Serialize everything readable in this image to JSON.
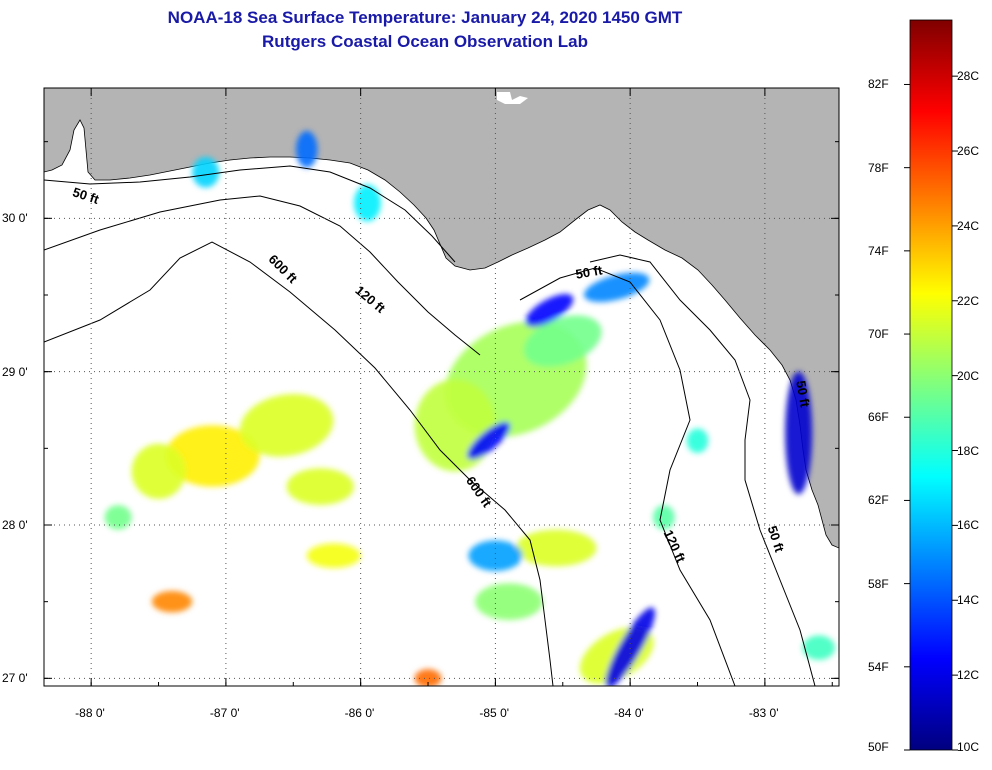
{
  "header": {
    "title": "NOAA-18 Sea Surface Temperature:  January 24, 2020 1450 GMT",
    "subtitle": "Rutgers Coastal Ocean Observation Lab"
  },
  "map": {
    "lon_range": [
      -88.35,
      -82.45
    ],
    "lat_range": [
      26.95,
      30.85
    ],
    "lat_ticks": [
      {
        "value": 30,
        "label": "30 0'"
      },
      {
        "value": 29,
        "label": "29 0'"
      },
      {
        "value": 28,
        "label": "28 0'"
      },
      {
        "value": 27,
        "label": "27 0'"
      }
    ],
    "lon_ticks": [
      {
        "value": -88,
        "label": "-88 0'"
      },
      {
        "value": -87,
        "label": "-87 0'"
      },
      {
        "value": -86,
        "label": "-86 0'"
      },
      {
        "value": -85,
        "label": "-85 0'"
      },
      {
        "value": -84,
        "label": "-84 0'"
      },
      {
        "value": -83,
        "label": "-83 0'"
      }
    ],
    "grid": "dotted",
    "land_color": "#b4b4b4",
    "contour_labels": [
      {
        "text": "50 ft",
        "lon": -88.05,
        "lat": 30.12,
        "rot": 18
      },
      {
        "text": "600 ft",
        "lon": -86.6,
        "lat": 29.65,
        "rot": 45
      },
      {
        "text": "120 ft",
        "lon": -85.95,
        "lat": 29.45,
        "rot": 40
      },
      {
        "text": "50 ft",
        "lon": -84.3,
        "lat": 29.62,
        "rot": -10
      },
      {
        "text": "600 ft",
        "lon": -85.15,
        "lat": 28.2,
        "rot": 55
      },
      {
        "text": "120 ft",
        "lon": -83.7,
        "lat": 27.85,
        "rot": 65
      },
      {
        "text": "50 ft",
        "lon": -82.95,
        "lat": 27.9,
        "rot": 72
      },
      {
        "text": "50 ft",
        "lon": -82.75,
        "lat": 28.85,
        "rot": 80
      }
    ]
  },
  "colorbar": {
    "f_labels": [
      {
        "value": 82,
        "label": "82F"
      },
      {
        "value": 78,
        "label": "78F"
      },
      {
        "value": 74,
        "label": "74F"
      },
      {
        "value": 70,
        "label": "70F"
      },
      {
        "value": 66,
        "label": "66F"
      },
      {
        "value": 62,
        "label": "62F"
      },
      {
        "value": 58,
        "label": "58F"
      },
      {
        "value": 54,
        "label": "54F"
      },
      {
        "value": 50,
        "label": "50F"
      }
    ],
    "c_labels": [
      {
        "value": 28,
        "label": "28C"
      },
      {
        "value": 26,
        "label": "26C"
      },
      {
        "value": 24,
        "label": "24C"
      },
      {
        "value": 22,
        "label": "22C"
      },
      {
        "value": 20,
        "label": "20C"
      },
      {
        "value": 18,
        "label": "18C"
      },
      {
        "value": 16,
        "label": "16C"
      },
      {
        "value": 14,
        "label": "14C"
      },
      {
        "value": 12,
        "label": "12C"
      },
      {
        "value": 10,
        "label": "10C"
      }
    ],
    "range_c": [
      10,
      29.5
    ],
    "colors": [
      "#00007f",
      "#0000ff",
      "#007fff",
      "#00ffff",
      "#7fff7f",
      "#ffff00",
      "#ff7f00",
      "#ff0000",
      "#7f0000"
    ]
  },
  "sst_patches": [
    {
      "lon": -84.85,
      "lat": 28.95,
      "rx": 0.55,
      "ry": 0.35,
      "rot": -25,
      "tempC": 20.5
    },
    {
      "lon": -85.3,
      "lat": 28.65,
      "rx": 0.3,
      "ry": 0.3,
      "rot": 0,
      "tempC": 21.0
    },
    {
      "lon": -84.5,
      "lat": 29.2,
      "rx": 0.3,
      "ry": 0.15,
      "rot": -20,
      "tempC": 19.5
    },
    {
      "lon": -82.75,
      "lat": 28.6,
      "rx": 0.1,
      "ry": 0.4,
      "rot": 0,
      "tempC": 11.5
    },
    {
      "lon": -84.1,
      "lat": 29.55,
      "rx": 0.25,
      "ry": 0.08,
      "rot": -15,
      "tempC": 15.0
    },
    {
      "lon": -84.6,
      "lat": 29.4,
      "rx": 0.2,
      "ry": 0.07,
      "rot": -30,
      "tempC": 12.5
    },
    {
      "lon": -85.05,
      "lat": 28.55,
      "rx": 0.2,
      "ry": 0.06,
      "rot": -40,
      "tempC": 12.5
    },
    {
      "lon": -87.1,
      "lat": 28.45,
      "rx": 0.35,
      "ry": 0.2,
      "rot": 0,
      "tempC": 22.5
    },
    {
      "lon": -86.55,
      "lat": 28.65,
      "rx": 0.35,
      "ry": 0.2,
      "rot": -10,
      "tempC": 21.5
    },
    {
      "lon": -87.5,
      "lat": 28.35,
      "rx": 0.2,
      "ry": 0.18,
      "rot": 0,
      "tempC": 21.5
    },
    {
      "lon": -86.3,
      "lat": 28.25,
      "rx": 0.25,
      "ry": 0.12,
      "rot": 0,
      "tempC": 21.5
    },
    {
      "lon": -87.4,
      "lat": 27.5,
      "rx": 0.15,
      "ry": 0.07,
      "rot": 0,
      "tempC": 24.5
    },
    {
      "lon": -86.2,
      "lat": 27.8,
      "rx": 0.2,
      "ry": 0.08,
      "rot": 0,
      "tempC": 22.0
    },
    {
      "lon": -84.55,
      "lat": 27.85,
      "rx": 0.3,
      "ry": 0.12,
      "rot": 0,
      "tempC": 21.5
    },
    {
      "lon": -85.0,
      "lat": 27.8,
      "rx": 0.2,
      "ry": 0.1,
      "rot": 0,
      "tempC": 15.5
    },
    {
      "lon": -84.9,
      "lat": 27.5,
      "rx": 0.25,
      "ry": 0.12,
      "rot": 0,
      "tempC": 20.0
    },
    {
      "lon": -84.1,
      "lat": 27.15,
      "rx": 0.3,
      "ry": 0.15,
      "rot": -30,
      "tempC": 21.5
    },
    {
      "lon": -84.0,
      "lat": 27.2,
      "rx": 0.08,
      "ry": 0.3,
      "rot": 30,
      "tempC": 12.0
    },
    {
      "lon": -85.5,
      "lat": 27.0,
      "rx": 0.1,
      "ry": 0.06,
      "rot": 0,
      "tempC": 25.0
    },
    {
      "lon": -86.4,
      "lat": 30.45,
      "rx": 0.08,
      "ry": 0.12,
      "rot": 0,
      "tempC": 14.5
    },
    {
      "lon": -85.95,
      "lat": 30.1,
      "rx": 0.1,
      "ry": 0.12,
      "rot": 0,
      "tempC": 17.0
    },
    {
      "lon": -87.15,
      "lat": 30.3,
      "rx": 0.1,
      "ry": 0.1,
      "rot": 0,
      "tempC": 16.5
    },
    {
      "lon": -83.75,
      "lat": 28.05,
      "rx": 0.08,
      "ry": 0.08,
      "rot": 0,
      "tempC": 19.0
    },
    {
      "lon": -83.5,
      "lat": 28.55,
      "rx": 0.08,
      "ry": 0.08,
      "rot": 0,
      "tempC": 18.0
    },
    {
      "lon": -87.8,
      "lat": 28.05,
      "rx": 0.1,
      "ry": 0.08,
      "rot": 0,
      "tempC": 19.5
    },
    {
      "lon": -82.6,
      "lat": 27.2,
      "rx": 0.12,
      "ry": 0.08,
      "rot": 0,
      "tempC": 18.5
    }
  ]
}
